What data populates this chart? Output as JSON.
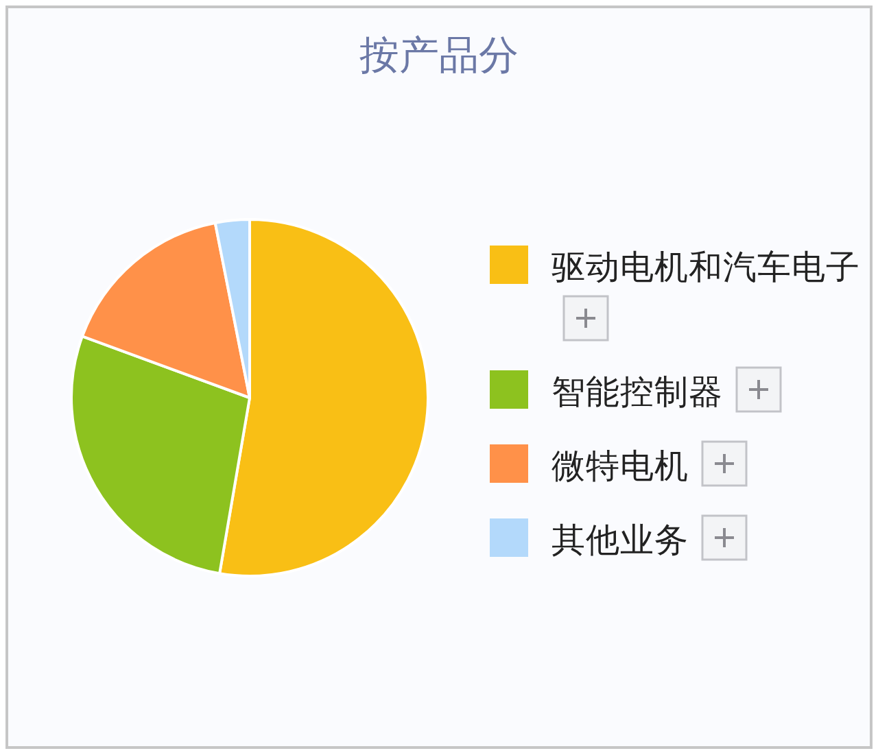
{
  "chart_data": {
    "type": "pie",
    "title": "按产品分",
    "categories": [
      "驱动电机和汽车电子",
      "智能控制器",
      "微特电机",
      "其他业务"
    ],
    "values": [
      52.7,
      27.9,
      16.3,
      3.1
    ],
    "colors": [
      "#f9bf15",
      "#8dc21f",
      "#ff9149",
      "#b3d9fb"
    ],
    "legend": "right"
  }
}
